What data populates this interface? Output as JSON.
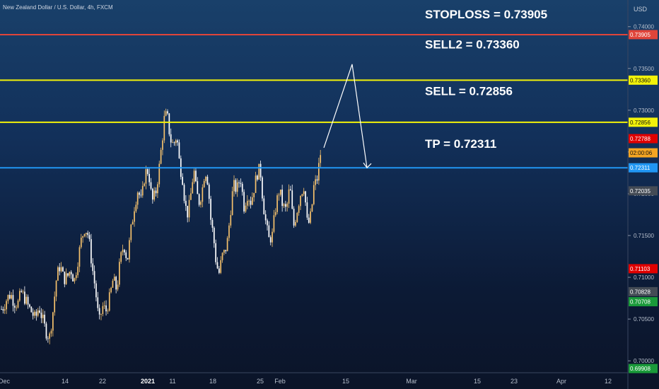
{
  "header": {
    "symbol": "New Zealand Dollar / U.S. Dollar, 4h, FXCM",
    "currency": "USD"
  },
  "colors": {
    "background_top": "#19406a",
    "background_bottom": "#0b1428",
    "candle_up": "#f5c16c",
    "candle_down": "#ffffff",
    "stoploss_line": "#e0453a",
    "sell_line": "#f2f20a",
    "tp_line": "#2196f3",
    "arrow": "#ffffff"
  },
  "chart_data": {
    "type": "candlestick",
    "symbol": "NZDUSD",
    "timeframe": "4h",
    "ylim": [
      0.699,
      0.7415
    ],
    "y_ticks": [
      "0.70000",
      "0.70500",
      "0.71000",
      "0.71500",
      "0.72000",
      "0.72500",
      "0.73000",
      "0.73500",
      "0.74000"
    ],
    "x_ticks": [
      "Dec",
      "14",
      "22",
      "2021",
      "11",
      "18",
      "25",
      "Feb",
      "15",
      "Mar",
      "15",
      "23",
      "Apr",
      "12"
    ],
    "price_path": [
      [
        0,
        0.706
      ],
      [
        5,
        0.7065
      ],
      [
        10,
        0.7075
      ],
      [
        15,
        0.708
      ],
      [
        20,
        0.707
      ],
      [
        25,
        0.7068
      ],
      [
        30,
        0.7082
      ],
      [
        35,
        0.7075
      ],
      [
        40,
        0.7065
      ],
      [
        45,
        0.7058
      ],
      [
        50,
        0.705
      ],
      [
        55,
        0.7065
      ],
      [
        60,
        0.705
      ],
      [
        65,
        0.7035
      ],
      [
        70,
        0.7028
      ],
      [
        75,
        0.706
      ],
      [
        80,
        0.71
      ],
      [
        85,
        0.7115
      ],
      [
        90,
        0.7098
      ],
      [
        95,
        0.71
      ],
      [
        100,
        0.711
      ],
      [
        105,
        0.7095
      ],
      [
        110,
        0.712
      ],
      [
        115,
        0.7145
      ],
      [
        120,
        0.716
      ],
      [
        125,
        0.715
      ],
      [
        130,
        0.7115
      ],
      [
        135,
        0.7085
      ],
      [
        140,
        0.7045
      ],
      [
        145,
        0.7065
      ],
      [
        150,
        0.706
      ],
      [
        155,
        0.7075
      ],
      [
        160,
        0.7098
      ],
      [
        165,
        0.7085
      ],
      [
        170,
        0.712
      ],
      [
        175,
        0.714
      ],
      [
        180,
        0.712
      ],
      [
        185,
        0.7155
      ],
      [
        190,
        0.7185
      ],
      [
        195,
        0.7205
      ],
      [
        200,
        0.719
      ],
      [
        205,
        0.7225
      ],
      [
        210,
        0.7228
      ],
      [
        215,
        0.719
      ],
      [
        220,
        0.72
      ],
      [
        225,
        0.723
      ],
      [
        230,
        0.727
      ],
      [
        233,
        0.7295
      ],
      [
        237,
        0.729
      ],
      [
        241,
        0.7265
      ],
      [
        245,
        0.7258
      ],
      [
        250,
        0.727
      ],
      [
        254,
        0.7235
      ],
      [
        258,
        0.722
      ],
      [
        262,
        0.7185
      ],
      [
        266,
        0.7175
      ],
      [
        270,
        0.72
      ],
      [
        274,
        0.723
      ],
      [
        278,
        0.72
      ],
      [
        282,
        0.719
      ],
      [
        286,
        0.7205
      ],
      [
        290,
        0.723
      ],
      [
        294,
        0.7215
      ],
      [
        298,
        0.717
      ],
      [
        302,
        0.7148
      ],
      [
        306,
        0.7115
      ],
      [
        310,
        0.7105
      ],
      [
        314,
        0.7125
      ],
      [
        318,
        0.713
      ],
      [
        322,
        0.7145
      ],
      [
        326,
        0.718
      ],
      [
        330,
        0.721
      ],
      [
        335,
        0.7205
      ],
      [
        340,
        0.722
      ],
      [
        345,
        0.7185
      ],
      [
        350,
        0.72
      ],
      [
        355,
        0.719
      ],
      [
        360,
        0.721
      ],
      [
        364,
        0.7225
      ],
      [
        368,
        0.723
      ],
      [
        372,
        0.719
      ],
      [
        376,
        0.7165
      ],
      [
        380,
        0.7145
      ],
      [
        385,
        0.715
      ],
      [
        390,
        0.7185
      ],
      [
        395,
        0.7205
      ],
      [
        400,
        0.7185
      ],
      [
        405,
        0.718
      ],
      [
        410,
        0.721
      ],
      [
        415,
        0.716
      ],
      [
        420,
        0.718
      ],
      [
        425,
        0.72
      ],
      [
        430,
        0.721
      ],
      [
        435,
        0.716
      ],
      [
        440,
        0.7175
      ],
      [
        444,
        0.721
      ],
      [
        448,
        0.7215
      ],
      [
        452,
        0.724
      ],
      [
        455,
        0.726
      ]
    ],
    "horizontal_levels": [
      {
        "label": "STOPLOSS = 0.73905",
        "price": 0.73905,
        "tag": "0.73905",
        "kind": "stoploss"
      },
      {
        "label": "SELL2 = 0.73360",
        "price": 0.7336,
        "tag": "0.73360",
        "kind": "sell"
      },
      {
        "label": "SELL = 0.72856",
        "price": 0.72856,
        "tag": "0.72856",
        "kind": "sell"
      },
      {
        "label": "TP = 0.72311",
        "price": 0.72311,
        "tag": "0.72311",
        "kind": "tp"
      }
    ],
    "projection": [
      [
        0.7255,
        0.72311
      ],
      [
        0.7355,
        0.735
      ],
      [
        0.7231,
        0.72311
      ]
    ],
    "price_tags": [
      {
        "text": "0.73905",
        "price": 0.73905,
        "bg": "#e0453a",
        "fg": "#ffffff"
      },
      {
        "text": "0.73360",
        "price": 0.7336,
        "bg": "#f2f20a",
        "fg": "#111111"
      },
      {
        "text": "0.72856",
        "price": 0.72856,
        "bg": "#f2f20a",
        "fg": "#111111"
      },
      {
        "text": "0.72788",
        "price": 0.7266,
        "bg": "#e00000",
        "fg": "#ffffff"
      },
      {
        "text": "02:00:06",
        "price": 0.7249,
        "bg": "#f5a623",
        "fg": "#111111"
      },
      {
        "text": "0.72311",
        "price": 0.72311,
        "bg": "#2196f3",
        "fg": "#ffffff"
      },
      {
        "text": "0.72035",
        "price": 0.72035,
        "bg": "#444b55",
        "fg": "#ffffff"
      },
      {
        "text": "0.71103",
        "price": 0.71103,
        "bg": "#e00000",
        "fg": "#ffffff"
      },
      {
        "text": "0.70828",
        "price": 0.70828,
        "bg": "#444b55",
        "fg": "#ffffff"
      },
      {
        "text": "0.70708",
        "price": 0.70708,
        "bg": "#1a9a3a",
        "fg": "#ffffff"
      },
      {
        "text": "0.69908",
        "price": 0.69908,
        "bg": "#1a9a3a",
        "fg": "#ffffff"
      }
    ]
  }
}
